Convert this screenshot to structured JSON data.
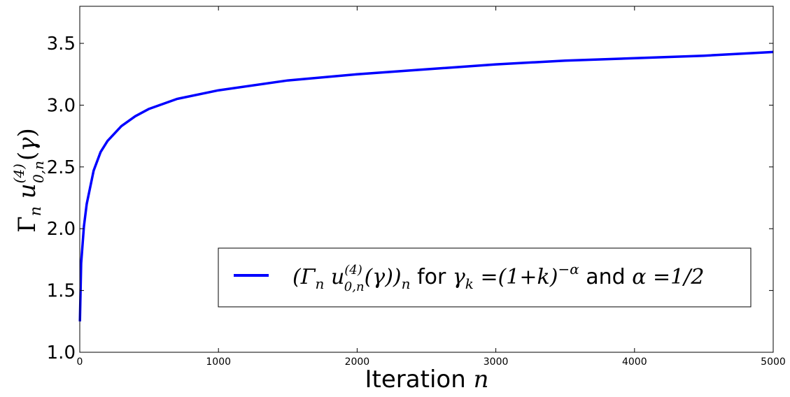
{
  "chart_data": {
    "type": "line",
    "xlabel": "Iteration n",
    "ylabel": "Γn u(4)0,n(γ)",
    "xlim": [
      0,
      5000
    ],
    "ylim": [
      1.0,
      3.8
    ],
    "x_ticks": [
      "0",
      "1000",
      "2000",
      "3000",
      "4000",
      "5000"
    ],
    "y_ticks": [
      "1.0",
      "1.5",
      "2.0",
      "2.5",
      "3.0",
      "3.5"
    ],
    "grid": false,
    "legend_position": "lower-right",
    "series": [
      {
        "name": "(Γn u(4)0,n(γ))n for γk = (1+k)^−α and α = 1/2",
        "color": "#0000ff",
        "x": [
          1,
          10,
          30,
          50,
          100,
          150,
          200,
          300,
          400,
          500,
          700,
          1000,
          1500,
          2000,
          2500,
          3000,
          3500,
          4000,
          4500,
          5000
        ],
        "y": [
          1.25,
          1.72,
          2.02,
          2.2,
          2.47,
          2.62,
          2.71,
          2.83,
          2.91,
          2.97,
          3.05,
          3.12,
          3.2,
          3.25,
          3.29,
          3.33,
          3.36,
          3.38,
          3.4,
          3.43
        ]
      }
    ]
  }
}
